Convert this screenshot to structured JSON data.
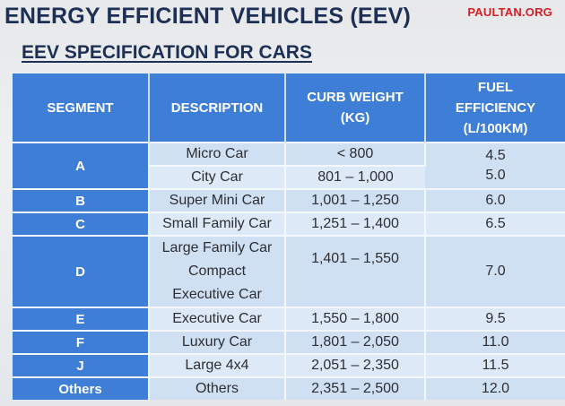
{
  "slide": {
    "title": "ENERGY EFFICIENT VEHICLES (EEV)",
    "watermark": "PAULTAN.ORG",
    "subtitle": "EEV SPECIFICATION FOR CARS"
  },
  "table": {
    "headers": {
      "segment": "SEGMENT",
      "description": "DESCRIPTION",
      "curb_weight_line1": "CURB WEIGHT",
      "curb_weight_line2": "(KG)",
      "fuel_line1": "FUEL",
      "fuel_line2": "EFFICIENCY",
      "fuel_line3": "(L/100KM)"
    },
    "rows": [
      {
        "segment": "A",
        "description": "Micro Car",
        "weight": "< 800",
        "fuel": "4.5"
      },
      {
        "segment": "A",
        "description": "City Car",
        "weight": "801 – 1,000",
        "fuel": "5.0"
      },
      {
        "segment": "B",
        "description": "Super Mini Car",
        "weight": "1,001 – 1,250",
        "fuel": "6.0"
      },
      {
        "segment": "C",
        "description": "Small Family Car",
        "weight": "1,251 – 1,400",
        "fuel": "6.5"
      },
      {
        "segment": "D",
        "description_lines": [
          "Large Family Car",
          "Compact",
          "Executive Car"
        ],
        "weight": "1,401 – 1,550",
        "fuel": "7.0"
      },
      {
        "segment": "E",
        "description": "Executive Car",
        "weight": "1,550 – 1,800",
        "fuel": "9.5"
      },
      {
        "segment": "F",
        "description": "Luxury Car",
        "weight": "1,801 – 2,050",
        "fuel": "11.0"
      },
      {
        "segment": "J",
        "description": "Large 4x4",
        "weight": "2,051 – 2,350",
        "fuel": "11.5"
      },
      {
        "segment": "Others",
        "description": "Others",
        "weight": "2,351 – 2,500",
        "fuel": "12.0"
      }
    ]
  },
  "colors": {
    "header_blue": "#3f7ed6",
    "cell_light": "#cfe0f3",
    "cell_alt": "#dde9f6",
    "title_navy": "#1d2f55",
    "watermark_red": "#d21f26"
  }
}
